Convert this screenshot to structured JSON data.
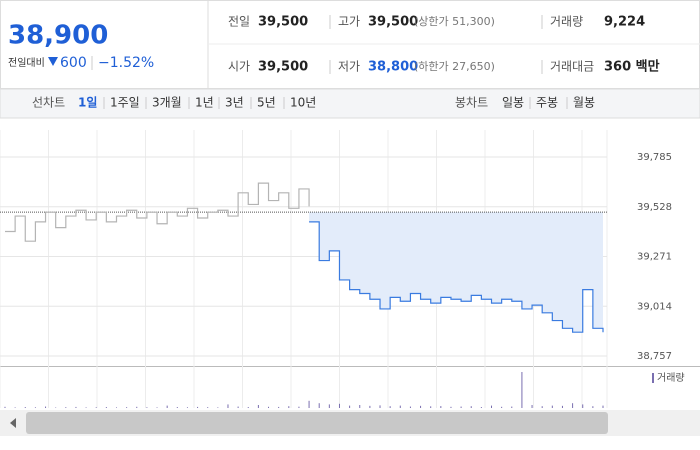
{
  "header": {
    "price": "38,900",
    "change_label": "전일대비",
    "change": "600",
    "change_rate": "−1.52%",
    "stats": [
      {
        "label": "전일",
        "value": "39,500"
      },
      {
        "label": "고가",
        "value": "39,500",
        "extra": "(상한가 51,300)"
      },
      {
        "label": "거래량",
        "value": "9,224"
      },
      {
        "label": "시가",
        "value": "39,500"
      },
      {
        "label": "저가",
        "value": "38,800",
        "extra": "(하한가 27,650)"
      },
      {
        "label": "거래대금",
        "value": "360 백만"
      }
    ]
  },
  "tabs": {
    "line_label": "선차트",
    "line_tabs": [
      "1일",
      "1주일",
      "3개월",
      "1년",
      "3년",
      "5년",
      "10년"
    ],
    "candle_label": "봉차트",
    "candle_tabs": [
      "일봉",
      "주봉",
      "월봉"
    ]
  },
  "chart_data": {
    "type": "line",
    "ylim": [
      38757,
      39785
    ],
    "yticks": [
      {
        "value": 39785,
        "label": "39,785"
      },
      {
        "value": 39528,
        "label": "39,528"
      },
      {
        "value": 39271,
        "label": "39,271"
      },
      {
        "value": 39014,
        "label": "39,014"
      },
      {
        "value": 38757,
        "label": "38,757"
      }
    ],
    "reference": 39500,
    "series": [
      {
        "color": "#b4b4b4",
        "values": [
          39400,
          39480,
          39350,
          39450,
          39500,
          39420,
          39480,
          39510,
          39460,
          39500,
          39450,
          39480,
          39510,
          39470,
          39500,
          39440,
          39500,
          39480,
          39520,
          39470,
          39500,
          39510,
          39480,
          39600,
          39540,
          39650,
          39560,
          39600,
          39520,
          39620,
          39530,
          null,
          null,
          null,
          null,
          null,
          null,
          null,
          null,
          null,
          null,
          null,
          null,
          null,
          null,
          null,
          null,
          null,
          null,
          null,
          null,
          null,
          null,
          null,
          null,
          null,
          null,
          null,
          null,
          null
        ]
      },
      {
        "color": "#3a7be0",
        "values": [
          null,
          null,
          null,
          null,
          null,
          null,
          null,
          null,
          null,
          null,
          null,
          null,
          null,
          null,
          null,
          null,
          null,
          null,
          null,
          null,
          null,
          null,
          null,
          null,
          null,
          null,
          null,
          null,
          null,
          null,
          39450,
          39250,
          39300,
          39150,
          39100,
          39080,
          39050,
          39000,
          39060,
          39040,
          39080,
          39050,
          39030,
          39060,
          39050,
          39040,
          39070,
          39050,
          39030,
          39050,
          39040,
          39000,
          39020,
          38980,
          38940,
          38900,
          38880,
          39100,
          38900,
          38880
        ]
      }
    ],
    "volume_label": "거래량",
    "volume": [
      10,
      5,
      8,
      6,
      12,
      4,
      7,
      9,
      5,
      6,
      8,
      5,
      7,
      10,
      6,
      5,
      20,
      8,
      6,
      9,
      7,
      5,
      30,
      12,
      8,
      25,
      10,
      9,
      15,
      11,
      60,
      40,
      30,
      35,
      20,
      25,
      18,
      22,
      15,
      20,
      12,
      18,
      14,
      16,
      10,
      12,
      15,
      8,
      20,
      10,
      12,
      300,
      25,
      15,
      20,
      18,
      40,
      30,
      15,
      20
    ],
    "volume_color": "#7a6fb0"
  }
}
